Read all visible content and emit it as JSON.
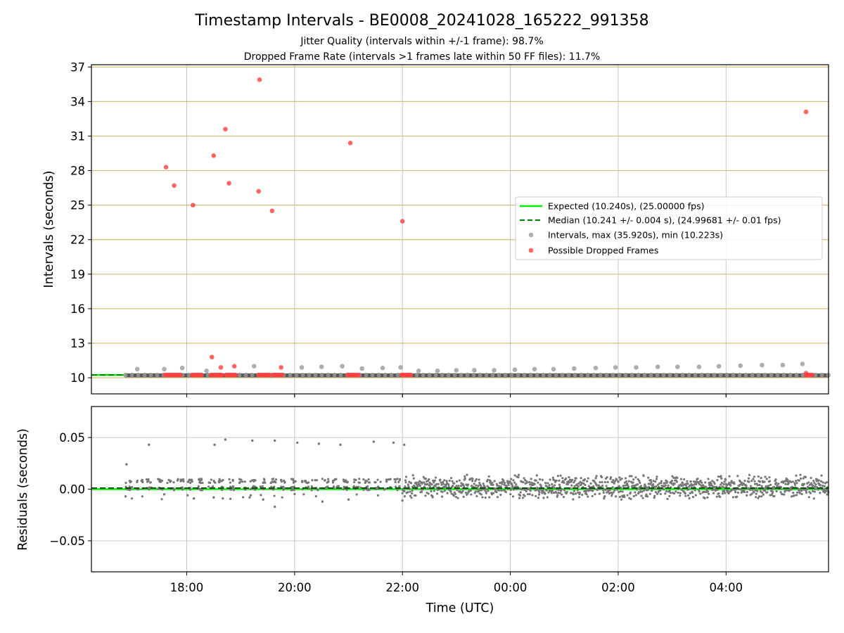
{
  "figure": {
    "title": "Timestamp Intervals - BE0008_20241028_165222_991358",
    "subtitle_1": "Jitter Quality (intervals within +/-1 frame): 98.7%",
    "subtitle_2": "Dropped Frame Rate (intervals >1 frames late within 50 FF files): 11.7%"
  },
  "colors": {
    "expected_line": "#00ee00",
    "median_line": "#008000",
    "intervals": "#a0a0a0",
    "dropped": "#ff4040",
    "residuals": "#777777",
    "top_hgrid": "#d4bf7a",
    "grid": "#c8c8c8"
  },
  "chart_data": [
    {
      "type": "scatter",
      "title": "",
      "xlabel": "",
      "ylabel": "Intervals (seconds)",
      "xlim": [
        "16:14",
        "05:54"
      ],
      "ylim": [
        8.6,
        37.2
      ],
      "y_ticks": [
        "10",
        "13",
        "16",
        "19",
        "22",
        "25",
        "28",
        "31",
        "34",
        "37"
      ],
      "x_ticks": [
        "18:00",
        "20:00",
        "22:00",
        "00:00",
        "02:00",
        "04:00"
      ],
      "grid": true,
      "legend_position": "center-right",
      "legend": [
        "Expected (10.240s), (25.00000 fps)",
        "Median (10.241 +/- 0.004 s), (24.99681 +/- 0.01 fps)",
        "Intervals, max (35.920s), min (10.223s)",
        "Possible Dropped Frames"
      ],
      "reference_lines": {
        "expected": 10.24,
        "median": 10.241
      },
      "baseline_range": [
        "16:52",
        "05:54"
      ],
      "series": [
        {
          "name": "Intervals, max (35.920s), min (10.223s)",
          "points": [
            [
              "17:05",
              10.75
            ],
            [
              "17:35",
              10.75
            ],
            [
              "17:55",
              10.85
            ],
            [
              "18:22",
              10.6
            ],
            [
              "19:15",
              11.0
            ],
            [
              "20:08",
              10.9
            ],
            [
              "20:30",
              10.95
            ],
            [
              "20:53",
              11.0
            ],
            [
              "21:15",
              10.8
            ],
            [
              "21:38",
              10.85
            ],
            [
              "21:58",
              10.9
            ],
            [
              "22:18",
              10.6
            ],
            [
              "22:39",
              10.6
            ],
            [
              "23:00",
              10.65
            ],
            [
              "23:20",
              10.65
            ],
            [
              "23:42",
              10.65
            ],
            [
              "00:05",
              10.7
            ],
            [
              "00:27",
              10.75
            ],
            [
              "00:48",
              10.75
            ],
            [
              "01:11",
              10.8
            ],
            [
              "01:35",
              10.85
            ],
            [
              "01:57",
              10.9
            ],
            [
              "02:20",
              10.9
            ],
            [
              "02:44",
              10.95
            ],
            [
              "03:06",
              10.95
            ],
            [
              "03:30",
              10.95
            ],
            [
              "03:52",
              11.0
            ],
            [
              "04:16",
              11.05
            ],
            [
              "04:40",
              11.1
            ],
            [
              "05:03",
              11.1
            ],
            [
              "05:25",
              11.2
            ]
          ]
        },
        {
          "name": "Possible Dropped Frames",
          "points": [
            [
              "17:37",
              28.3
            ],
            [
              "17:46",
              26.7
            ],
            [
              "18:07",
              25.0
            ],
            [
              "18:30",
              29.3
            ],
            [
              "18:28",
              11.8
            ],
            [
              "18:38",
              10.9
            ],
            [
              "18:43",
              31.6
            ],
            [
              "18:47",
              26.9
            ],
            [
              "18:53",
              11.0
            ],
            [
              "19:21",
              35.9
            ],
            [
              "19:20",
              26.2
            ],
            [
              "19:35",
              24.5
            ],
            [
              "19:45",
              10.9
            ],
            [
              "21:02",
              30.4
            ],
            [
              "22:00",
              23.6
            ],
            [
              "05:29",
              33.1
            ],
            [
              "05:29",
              10.4
            ]
          ],
          "clusters_at_baseline": [
            [
              "17:36",
              "17:54"
            ],
            [
              "18:06",
              "18:18"
            ],
            [
              "18:27",
              "18:40"
            ],
            [
              "18:44",
              "18:55"
            ],
            [
              "19:20",
              "19:33"
            ],
            [
              "19:36",
              "19:47"
            ],
            [
              "20:59",
              "21:12"
            ],
            [
              "21:59",
              "22:11"
            ],
            [
              "05:29",
              "05:37"
            ]
          ]
        }
      ]
    },
    {
      "type": "scatter",
      "title": "",
      "xlabel": "Time (UTC)",
      "ylabel": "Residuals (seconds)",
      "xlim": [
        "16:14",
        "05:54"
      ],
      "ylim": [
        -0.08,
        0.08
      ],
      "y_ticks": [
        "0.05",
        "0.00",
        "−0.05"
      ],
      "x_ticks": [
        "18:00",
        "20:00",
        "22:00",
        "00:00",
        "02:00",
        "04:00"
      ],
      "grid": true,
      "reference_lines": {
        "expected": 0.0,
        "median": 0.001
      },
      "series": [
        {
          "name": "Residuals",
          "points": [
            [
              "16:53",
              0.024
            ],
            [
              "17:18",
              0.043
            ],
            [
              "18:31",
              0.043
            ],
            [
              "18:43",
              0.048
            ],
            [
              "19:13",
              0.047
            ],
            [
              "19:38",
              0.047
            ],
            [
              "20:03",
              0.045
            ],
            [
              "20:27",
              0.044
            ],
            [
              "20:51",
              0.043
            ],
            [
              "21:28",
              0.046
            ],
            [
              "21:50",
              0.045
            ],
            [
              "22:02",
              0.043
            ],
            [
              "19:38",
              -0.017
            ],
            [
              "20:31",
              -0.012
            ],
            [
              "21:00",
              -0.01
            ],
            [
              "22:00",
              -0.011
            ],
            [
              "16:52",
              -0.007
            ],
            [
              "17:35",
              -0.005
            ],
            [
              "18:08",
              -0.009
            ],
            [
              "18:30",
              -0.008
            ],
            [
              "19:10",
              -0.008
            ],
            [
              "19:25",
              -0.01
            ]
          ],
          "sparse_range": [
            "16:52",
            "22:00"
          ],
          "dense_range": [
            "22:00",
            "05:54"
          ]
        }
      ]
    }
  ]
}
